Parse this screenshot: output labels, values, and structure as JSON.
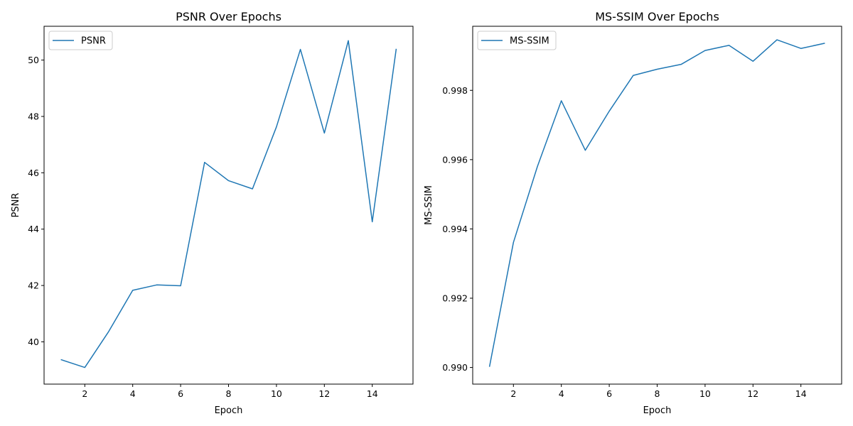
{
  "chart_data": [
    {
      "type": "line",
      "title": "PSNR Over Epochs",
      "xlabel": "Epoch",
      "ylabel": "PSNR",
      "xlim": [
        0.3,
        15.7
      ],
      "ylim": [
        38.5,
        51.2
      ],
      "xticks": [
        2,
        4,
        6,
        8,
        10,
        12,
        14
      ],
      "xtick_labels": [
        "2",
        "4",
        "6",
        "8",
        "10",
        "12",
        "14"
      ],
      "yticks": [
        40,
        42,
        44,
        46,
        48,
        50
      ],
      "ytick_labels": [
        "40",
        "42",
        "44",
        "46",
        "48",
        "50"
      ],
      "grid": false,
      "legend_position": "upper-left",
      "color": "#1f77b4",
      "series": [
        {
          "name": "PSNR",
          "x": [
            1,
            2,
            3,
            4,
            5,
            6,
            7,
            8,
            9,
            10,
            11,
            12,
            13,
            14,
            15
          ],
          "y": [
            39.37,
            39.09,
            40.37,
            41.83,
            42.02,
            41.99,
            46.37,
            45.72,
            45.43,
            47.63,
            50.38,
            47.41,
            50.69,
            44.26,
            50.4
          ]
        }
      ]
    },
    {
      "type": "line",
      "title": "MS-SSIM Over Epochs",
      "xlabel": "Epoch",
      "ylabel": "MS-SSIM",
      "xlim": [
        0.3,
        15.7
      ],
      "ylim": [
        0.98952,
        0.99985
      ],
      "xticks": [
        2,
        4,
        6,
        8,
        10,
        12,
        14
      ],
      "xtick_labels": [
        "2",
        "4",
        "6",
        "8",
        "10",
        "12",
        "14"
      ],
      "yticks": [
        0.99,
        0.992,
        0.994,
        0.996,
        0.998
      ],
      "ytick_labels": [
        "0.990",
        "0.992",
        "0.994",
        "0.996",
        "0.998"
      ],
      "grid": false,
      "legend_position": "upper-left",
      "color": "#1f77b4",
      "series": [
        {
          "name": "MS-SSIM",
          "x": [
            1,
            2,
            3,
            4,
            5,
            6,
            7,
            8,
            9,
            10,
            11,
            12,
            13,
            14,
            15
          ],
          "y": [
            0.99002,
            0.99361,
            0.9958,
            0.9977,
            0.99627,
            0.9974,
            0.99843,
            0.99861,
            0.99875,
            0.99915,
            0.9993,
            0.99884,
            0.99946,
            0.99921,
            0.99936
          ]
        }
      ]
    }
  ]
}
